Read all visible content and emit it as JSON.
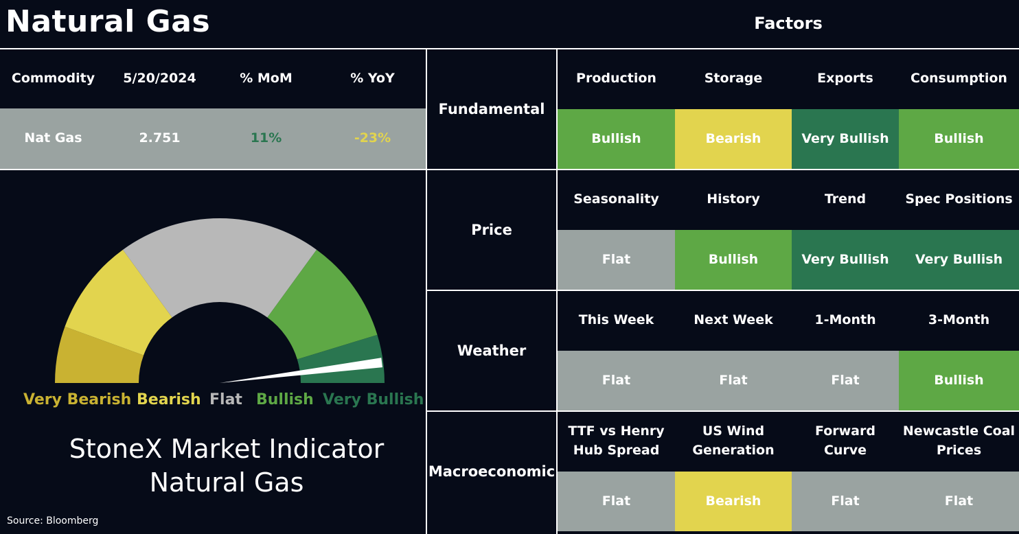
{
  "header": {
    "title": "Natural Gas",
    "factors_title": "Factors"
  },
  "commodity_table": {
    "headers": [
      "Commodity",
      "5/20/2024",
      "% MoM",
      "% YoY"
    ],
    "row": {
      "commodity": "Nat Gas",
      "value": "2.751",
      "mom": "11%",
      "yoy": "-23%"
    },
    "colors": {
      "mom": "#2a7650",
      "yoy": "#e2d44e",
      "row_bg": "#9aa3a1"
    }
  },
  "gauge": {
    "labels": [
      "Very Bearish",
      "Bearish",
      "Flat",
      "Bullish",
      "Very Bullish"
    ],
    "label_colors": [
      "#c9b232",
      "#e2d44e",
      "#b8b8b8",
      "#5ea845",
      "#2a7650"
    ],
    "segment_colors": [
      "#c9b232",
      "#e2d44e",
      "#b8b8b8",
      "#5ea845",
      "#2a7650"
    ],
    "needle_value": 0.96,
    "needle_color": "#ffffff"
  },
  "indicator": {
    "line1": "StoneX Market Indicator",
    "line2": "Natural Gas"
  },
  "source": "Source: Bloomberg",
  "factor_groups": [
    {
      "category": "Fundamental",
      "factors": [
        {
          "name": "Production",
          "rating": "Bullish"
        },
        {
          "name": "Storage",
          "rating": "Bearish"
        },
        {
          "name": "Exports",
          "rating": "Very Bullish"
        },
        {
          "name": "Consumption",
          "rating": "Bullish"
        }
      ]
    },
    {
      "category": "Price",
      "factors": [
        {
          "name": "Seasonality",
          "rating": "Flat"
        },
        {
          "name": "History",
          "rating": "Bullish"
        },
        {
          "name": "Trend",
          "rating": "Very Bullish"
        },
        {
          "name": "Spec Positions",
          "rating": "Very Bullish"
        }
      ]
    },
    {
      "category": "Weather",
      "factors": [
        {
          "name": "This Week",
          "rating": "Flat"
        },
        {
          "name": "Next Week",
          "rating": "Flat"
        },
        {
          "name": "1-Month",
          "rating": "Flat"
        },
        {
          "name": "3-Month",
          "rating": "Bullish"
        }
      ]
    },
    {
      "category": "Macroeconomic",
      "factors": [
        {
          "name": "TTF vs Henry Hub Spread",
          "rating": "Flat"
        },
        {
          "name": "US Wind Generation",
          "rating": "Bearish"
        },
        {
          "name": "Forward Curve",
          "rating": "Flat"
        },
        {
          "name": "Newcastle Coal Prices",
          "rating": "Flat"
        }
      ]
    }
  ],
  "rating_colors": {
    "Very Bearish": "#c9b232",
    "Bearish": "#e2d44e",
    "Flat": "#9aa3a1",
    "Bullish": "#5ea845",
    "Very Bullish": "#2a7650"
  }
}
